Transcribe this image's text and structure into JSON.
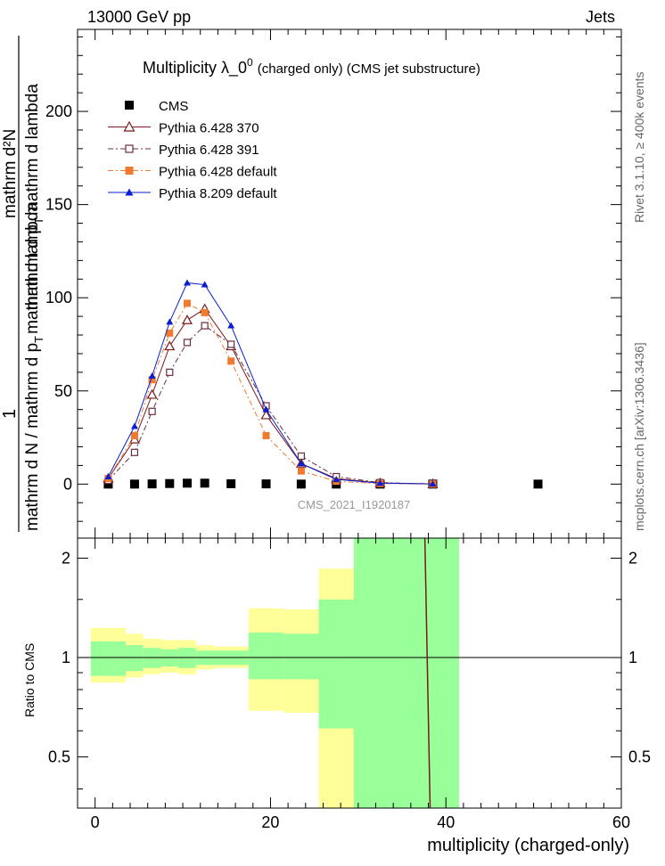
{
  "header": {
    "left": "13000 GeV pp",
    "right": "Jets",
    "side_top": "Rivet 3.1.10, ≥ 400k events",
    "side_bottom": "mcplots.cern.ch [arXiv:1306.3436]"
  },
  "chart_data": [
    {
      "type": "line",
      "panel": "main",
      "title": "Multiplicity  λ_0",
      "title_sup": "0",
      "title_tail": "(charged only) (CMS jet substructure)",
      "ylabel_left_top": "1",
      "ylabel_left_frac": "mathrm d N / mathrm d p",
      "ylabel_left_sub": "T",
      "ylabel_left_frac2": "mathrm d lambda",
      "ylabel_num_top": "mathrm d²N",
      "ylabel_num_mid": "mathrm d p",
      "ylabel_num_sub": "T",
      "ylabel_num_tail": "mathrm d lambda",
      "watermark": "CMS_2021_I1920187",
      "xlim": [
        -2,
        60
      ],
      "ylim": [
        -29,
        244
      ],
      "yticks": [
        0,
        50,
        100,
        150,
        200
      ],
      "legend_position": "top-left",
      "series": [
        {
          "name": "CMS",
          "style": "square-filled",
          "color": "#000000",
          "x": [
            1.5,
            4.5,
            6.5,
            8.5,
            10.5,
            12.5,
            15.5,
            19.5,
            23.5,
            27.5,
            32.5,
            38.5,
            50.5
          ],
          "y": [
            0.0,
            0.0,
            0.1,
            0.3,
            0.5,
            0.5,
            0.2,
            0.1,
            0.0,
            0.0,
            0.0,
            0.0,
            0.0
          ]
        },
        {
          "name": "Pythia 6.428 370",
          "style": "triangle-open",
          "color": "#7a1a1a",
          "dash": "",
          "x": [
            1.5,
            4.5,
            6.5,
            8.5,
            10.5,
            12.5,
            15.5,
            19.5,
            23.5,
            27.5,
            32.5,
            38.5
          ],
          "y": [
            3,
            24,
            48,
            74,
            88,
            94,
            74,
            37,
            11,
            3,
            0.6,
            0.1
          ]
        },
        {
          "name": "Pythia 6.428 391",
          "style": "square-open",
          "color": "#6b2c3c",
          "dash": "6,3,2,3",
          "x": [
            1.5,
            4.5,
            6.5,
            8.5,
            10.5,
            12.5,
            15.5,
            19.5,
            23.5,
            27.5,
            32.5,
            38.5
          ],
          "y": [
            2,
            17,
            39,
            60,
            76,
            85,
            75,
            42,
            15,
            4,
            0.8,
            0.1
          ]
        },
        {
          "name": "Pythia 6.428 default",
          "style": "square-filled",
          "color": "#f07a30",
          "dash": "6,3,2,3",
          "x": [
            1.5,
            4.5,
            6.5,
            8.5,
            10.5,
            12.5,
            15.5,
            19.5,
            23.5,
            27.5,
            32.5,
            38.5
          ],
          "y": [
            3,
            26,
            56,
            81,
            97,
            92,
            66,
            26,
            7,
            1.5,
            0.3,
            0.05
          ]
        },
        {
          "name": "Pythia 8.209 default",
          "style": "triangle-filled",
          "color": "#0a1ed2",
          "dash": "",
          "x": [
            1.5,
            4.5,
            6.5,
            8.5,
            10.5,
            12.5,
            15.5,
            19.5,
            23.5,
            27.5,
            32.5,
            38.5
          ],
          "y": [
            4,
            31,
            58,
            87,
            108,
            107,
            85,
            40,
            11,
            2.5,
            0.5,
            0.1
          ]
        }
      ]
    },
    {
      "type": "area",
      "panel": "ratio",
      "ylabel": "Ratio to CMS",
      "xlabel": "multiplicity (charged-only)",
      "xlim": [
        -2,
        60
      ],
      "xticks": [
        0,
        20,
        40,
        60
      ],
      "yscale": "log",
      "ylim": [
        0.35,
        2.3
      ],
      "yticks": [
        0.5,
        1,
        2
      ],
      "bins": [
        {
          "lo": -0.5,
          "hi": 3.5,
          "green": [
            0.88,
            1.12
          ],
          "yellow": [
            0.84,
            1.23
          ]
        },
        {
          "lo": 3.5,
          "hi": 5.5,
          "green": [
            0.91,
            1.09
          ],
          "yellow": [
            0.87,
            1.18
          ]
        },
        {
          "lo": 5.5,
          "hi": 7.5,
          "green": [
            0.93,
            1.07
          ],
          "yellow": [
            0.89,
            1.14
          ]
        },
        {
          "lo": 7.5,
          "hi": 9.5,
          "green": [
            0.94,
            1.06
          ],
          "yellow": [
            0.9,
            1.13
          ]
        },
        {
          "lo": 9.5,
          "hi": 11.5,
          "green": [
            0.93,
            1.07
          ],
          "yellow": [
            0.89,
            1.13
          ]
        },
        {
          "lo": 11.5,
          "hi": 13.5,
          "green": [
            0.95,
            1.05
          ],
          "yellow": [
            0.92,
            1.09
          ]
        },
        {
          "lo": 13.5,
          "hi": 17.5,
          "green": [
            0.95,
            1.05
          ],
          "yellow": [
            0.93,
            1.08
          ]
        },
        {
          "lo": 17.5,
          "hi": 21.5,
          "green": [
            0.86,
            1.19
          ],
          "yellow": [
            0.69,
            1.41
          ]
        },
        {
          "lo": 21.5,
          "hi": 25.5,
          "green": [
            0.86,
            1.18
          ],
          "yellow": [
            0.68,
            1.4
          ]
        },
        {
          "lo": 25.5,
          "hi": 29.5,
          "green": [
            0.35,
            1.5
          ],
          "yellow": [
            0.35,
            1.86
          ]
        },
        {
          "lo": 29.5,
          "hi": 41.5,
          "green": [
            0.35,
            2.3
          ],
          "yellow": [
            0.35,
            2.3
          ]
        }
      ],
      "yellow_cutout": {
        "lo": 25.5,
        "hi": 29.5,
        "green_top": 0.61
      },
      "ratio_line": {
        "x": [
          37.6,
          38.2
        ],
        "y": [
          2.3,
          0.35
        ],
        "color": "#7a1a1a"
      }
    }
  ]
}
